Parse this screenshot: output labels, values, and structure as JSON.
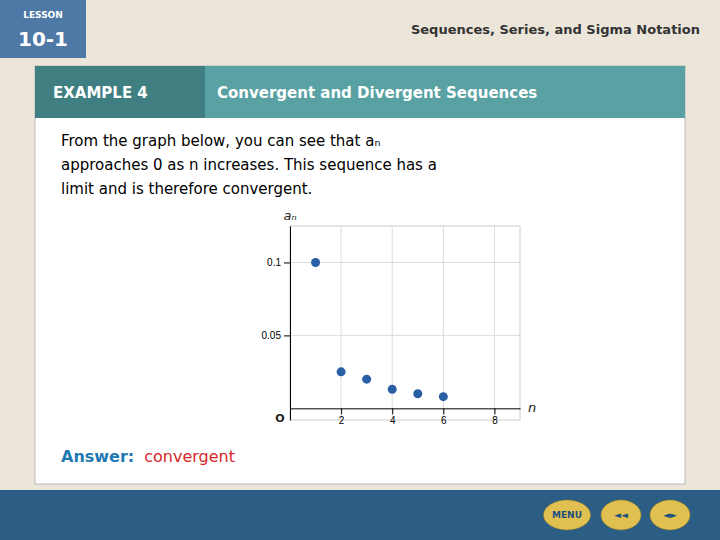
{
  "chart_data": {
    "type": "scatter",
    "title": "Convergent and Divergent Sequences",
    "x": [
      1,
      2,
      3,
      4,
      5,
      6
    ],
    "values": [
      0.1,
      0.025,
      0.02,
      0.013,
      0.01,
      0.008
    ],
    "color": "#2a5fa5",
    "xlabel": "n",
    "ylabel": "aₙ",
    "xlim": [
      0,
      9
    ],
    "ylim": [
      -0.008,
      0.125
    ],
    "xticks": [
      2,
      4,
      6,
      8
    ],
    "yticks": [
      0.05,
      0.1
    ],
    "grid": true,
    "annotations": [
      "EXAMPLE 4",
      "From the graph below, you can see that aₙ",
      "approaches 0 as n increases. This sequence has a",
      "limit and is therefore convergent.",
      "Answer:",
      "convergent",
      "LESSON",
      "10-1",
      "Sequences, Series, and Sigma Notation",
      "MENU",
      "◄◄",
      "◄►",
      "O"
    ]
  }
}
